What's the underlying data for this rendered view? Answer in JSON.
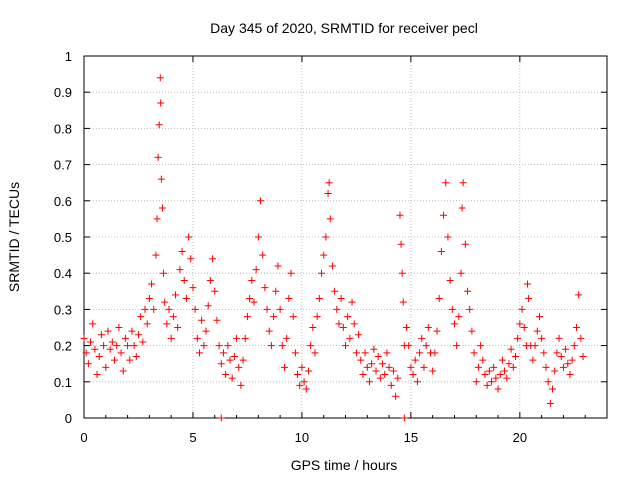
{
  "chart_data": {
    "type": "scatter",
    "title": "Day 345 of 2020, SRMTID for receiver pecl",
    "xlabel": "GPS time / hours",
    "ylabel": "SRMTID / TECUs",
    "xlim": [
      0,
      24
    ],
    "ylim": [
      0,
      1
    ],
    "xticks": [
      0,
      5,
      10,
      15,
      20
    ],
    "xtick_labels": [
      "0",
      "5",
      "10",
      "15",
      "20"
    ],
    "yticks": [
      0,
      0.1,
      0.2,
      0.3,
      0.4,
      0.5,
      0.6,
      0.7,
      0.8,
      0.9,
      1
    ],
    "ytick_labels": [
      "0",
      "0.1",
      "0.2",
      "0.3",
      "0.4",
      "0.5",
      "0.6",
      "0.7",
      "0.8",
      "0.9",
      "1"
    ],
    "grid": true,
    "marker": "+",
    "color": "#ff0000",
    "series": [
      {
        "name": "SRMTID",
        "points": [
          [
            0.0,
            0.22
          ],
          [
            0.1,
            0.18
          ],
          [
            0.2,
            0.15
          ],
          [
            0.3,
            0.21
          ],
          [
            0.4,
            0.26
          ],
          [
            0.5,
            0.19
          ],
          [
            0.6,
            0.12
          ],
          [
            0.7,
            0.17
          ],
          [
            0.8,
            0.23
          ],
          [
            0.9,
            0.2
          ],
          [
            1.0,
            0.14
          ],
          [
            1.1,
            0.24
          ],
          [
            1.2,
            0.19
          ],
          [
            1.3,
            0.21
          ],
          [
            1.4,
            0.16
          ],
          [
            1.5,
            0.2
          ],
          [
            1.6,
            0.25
          ],
          [
            1.7,
            0.18
          ],
          [
            1.8,
            0.13
          ],
          [
            1.9,
            0.22
          ],
          [
            2.0,
            0.2
          ],
          [
            2.1,
            0.16
          ],
          [
            2.2,
            0.24
          ],
          [
            2.3,
            0.2
          ],
          [
            2.4,
            0.17
          ],
          [
            2.5,
            0.23
          ],
          [
            2.6,
            0.28
          ],
          [
            2.7,
            0.21
          ],
          [
            2.8,
            0.3
          ],
          [
            2.9,
            0.26
          ],
          [
            3.0,
            0.33
          ],
          [
            3.1,
            0.37
          ],
          [
            3.2,
            0.3
          ],
          [
            3.3,
            0.45
          ],
          [
            3.35,
            0.55
          ],
          [
            3.4,
            0.72
          ],
          [
            3.45,
            0.81
          ],
          [
            3.5,
            0.94
          ],
          [
            3.52,
            0.87
          ],
          [
            3.55,
            0.66
          ],
          [
            3.6,
            0.58
          ],
          [
            3.65,
            0.4
          ],
          [
            3.7,
            0.32
          ],
          [
            3.8,
            0.26
          ],
          [
            3.9,
            0.3
          ],
          [
            4.0,
            0.22
          ],
          [
            4.1,
            0.28
          ],
          [
            4.2,
            0.34
          ],
          [
            4.3,
            0.25
          ],
          [
            4.4,
            0.41
          ],
          [
            4.5,
            0.46
          ],
          [
            4.6,
            0.38
          ],
          [
            4.7,
            0.33
          ],
          [
            4.8,
            0.5
          ],
          [
            4.9,
            0.44
          ],
          [
            5.0,
            0.36
          ],
          [
            5.1,
            0.3
          ],
          [
            5.2,
            0.22
          ],
          [
            5.3,
            0.18
          ],
          [
            5.4,
            0.27
          ],
          [
            5.5,
            0.2
          ],
          [
            5.6,
            0.24
          ],
          [
            5.7,
            0.31
          ],
          [
            5.8,
            0.38
          ],
          [
            5.9,
            0.44
          ],
          [
            6.0,
            0.35
          ],
          [
            6.1,
            0.27
          ],
          [
            6.2,
            0.2
          ],
          [
            6.3,
            0.15
          ],
          [
            6.4,
            0.18
          ],
          [
            6.5,
            0.12
          ],
          [
            6.6,
            0.2
          ],
          [
            6.7,
            0.16
          ],
          [
            6.8,
            0.11
          ],
          [
            6.9,
            0.17
          ],
          [
            7.0,
            0.22
          ],
          [
            7.1,
            0.14
          ],
          [
            7.2,
            0.09
          ],
          [
            7.3,
            0.16
          ],
          [
            7.4,
            0.22
          ],
          [
            7.5,
            0.28
          ],
          [
            7.6,
            0.33
          ],
          [
            7.7,
            0.38
          ],
          [
            7.8,
            0.32
          ],
          [
            7.9,
            0.41
          ],
          [
            8.0,
            0.5
          ],
          [
            8.1,
            0.6
          ],
          [
            8.2,
            0.45
          ],
          [
            8.3,
            0.36
          ],
          [
            8.4,
            0.3
          ],
          [
            8.5,
            0.24
          ],
          [
            8.6,
            0.2
          ],
          [
            8.7,
            0.28
          ],
          [
            8.8,
            0.35
          ],
          [
            8.9,
            0.42
          ],
          [
            9.0,
            0.3
          ],
          [
            9.1,
            0.2
          ],
          [
            9.2,
            0.14
          ],
          [
            9.3,
            0.22
          ],
          [
            9.4,
            0.33
          ],
          [
            9.5,
            0.4
          ],
          [
            9.6,
            0.28
          ],
          [
            9.7,
            0.18
          ],
          [
            9.8,
            0.12
          ],
          [
            9.9,
            0.09
          ],
          [
            10.0,
            0.14
          ],
          [
            10.1,
            0.1
          ],
          [
            10.2,
            0.08
          ],
          [
            10.3,
            0.13
          ],
          [
            10.4,
            0.2
          ],
          [
            10.5,
            0.25
          ],
          [
            10.6,
            0.18
          ],
          [
            10.7,
            0.28
          ],
          [
            10.8,
            0.33
          ],
          [
            10.9,
            0.4
          ],
          [
            11.0,
            0.45
          ],
          [
            11.1,
            0.5
          ],
          [
            11.2,
            0.62
          ],
          [
            11.25,
            0.65
          ],
          [
            11.3,
            0.55
          ],
          [
            11.4,
            0.42
          ],
          [
            11.5,
            0.35
          ],
          [
            11.6,
            0.3
          ],
          [
            11.7,
            0.26
          ],
          [
            11.8,
            0.33
          ],
          [
            11.9,
            0.25
          ],
          [
            12.0,
            0.2
          ],
          [
            12.1,
            0.28
          ],
          [
            12.2,
            0.22
          ],
          [
            12.3,
            0.32
          ],
          [
            12.4,
            0.26
          ],
          [
            12.5,
            0.18
          ],
          [
            12.6,
            0.23
          ],
          [
            12.7,
            0.16
          ],
          [
            12.8,
            0.12
          ],
          [
            12.9,
            0.18
          ],
          [
            13.0,
            0.14
          ],
          [
            13.1,
            0.1
          ],
          [
            13.2,
            0.15
          ],
          [
            13.3,
            0.19
          ],
          [
            13.4,
            0.13
          ],
          [
            13.5,
            0.17
          ],
          [
            13.6,
            0.11
          ],
          [
            13.7,
            0.15
          ],
          [
            13.8,
            0.12
          ],
          [
            13.9,
            0.18
          ],
          [
            14.0,
            0.14
          ],
          [
            14.1,
            0.09
          ],
          [
            14.2,
            0.13
          ],
          [
            14.3,
            0.06
          ],
          [
            14.4,
            0.11
          ],
          [
            14.5,
            0.56
          ],
          [
            14.55,
            0.48
          ],
          [
            14.6,
            0.4
          ],
          [
            14.65,
            0.32
          ],
          [
            14.7,
            0.2
          ],
          [
            14.8,
            0.25
          ],
          [
            14.9,
            0.2
          ],
          [
            15.0,
            0.14
          ],
          [
            15.1,
            0.12
          ],
          [
            15.2,
            0.16
          ],
          [
            15.3,
            0.1
          ],
          [
            15.4,
            0.18
          ],
          [
            15.5,
            0.22
          ],
          [
            15.6,
            0.14
          ],
          [
            15.7,
            0.2
          ],
          [
            15.8,
            0.25
          ],
          [
            15.9,
            0.18
          ],
          [
            16.0,
            0.13
          ],
          [
            16.1,
            0.18
          ],
          [
            16.2,
            0.24
          ],
          [
            16.3,
            0.33
          ],
          [
            16.4,
            0.46
          ],
          [
            16.5,
            0.56
          ],
          [
            16.6,
            0.65
          ],
          [
            16.7,
            0.5
          ],
          [
            16.8,
            0.38
          ],
          [
            16.9,
            0.3
          ],
          [
            17.0,
            0.26
          ],
          [
            17.1,
            0.2
          ],
          [
            17.2,
            0.28
          ],
          [
            17.3,
            0.4
          ],
          [
            17.35,
            0.58
          ],
          [
            17.4,
            0.65
          ],
          [
            17.5,
            0.48
          ],
          [
            17.6,
            0.35
          ],
          [
            17.7,
            0.3
          ],
          [
            17.8,
            0.24
          ],
          [
            17.9,
            0.18
          ],
          [
            18.0,
            0.1
          ],
          [
            18.1,
            0.14
          ],
          [
            18.2,
            0.2
          ],
          [
            18.3,
            0.16
          ],
          [
            18.4,
            0.12
          ],
          [
            18.5,
            0.09
          ],
          [
            18.6,
            0.13
          ],
          [
            18.7,
            0.1
          ],
          [
            18.8,
            0.14
          ],
          [
            18.9,
            0.11
          ],
          [
            19.0,
            0.08
          ],
          [
            19.1,
            0.12
          ],
          [
            19.2,
            0.16
          ],
          [
            19.3,
            0.13
          ],
          [
            19.4,
            0.11
          ],
          [
            19.5,
            0.15
          ],
          [
            19.6,
            0.19
          ],
          [
            19.7,
            0.14
          ],
          [
            19.8,
            0.17
          ],
          [
            19.9,
            0.22
          ],
          [
            20.0,
            0.26
          ],
          [
            20.1,
            0.3
          ],
          [
            20.2,
            0.25
          ],
          [
            20.3,
            0.2
          ],
          [
            20.35,
            0.37
          ],
          [
            20.4,
            0.33
          ],
          [
            20.5,
            0.2
          ],
          [
            20.6,
            0.16
          ],
          [
            20.7,
            0.2
          ],
          [
            20.8,
            0.24
          ],
          [
            20.9,
            0.28
          ],
          [
            21.0,
            0.22
          ],
          [
            21.1,
            0.18
          ],
          [
            21.2,
            0.14
          ],
          [
            21.3,
            0.1
          ],
          [
            21.4,
            0.04
          ],
          [
            21.5,
            0.08
          ],
          [
            21.6,
            0.13
          ],
          [
            21.7,
            0.18
          ],
          [
            21.8,
            0.22
          ],
          [
            21.9,
            0.17
          ],
          [
            22.0,
            0.14
          ],
          [
            22.1,
            0.19
          ],
          [
            22.2,
            0.15
          ],
          [
            22.3,
            0.12
          ],
          [
            22.4,
            0.16
          ],
          [
            22.5,
            0.2
          ],
          [
            22.6,
            0.25
          ],
          [
            22.7,
            0.34
          ],
          [
            22.8,
            0.22
          ],
          [
            22.9,
            0.17
          ],
          [
            6.3,
            0.0
          ],
          [
            14.7,
            0.0
          ]
        ]
      }
    ]
  }
}
